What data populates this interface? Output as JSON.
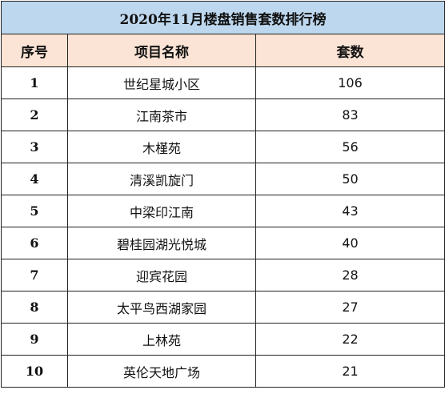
{
  "table": {
    "title": "2020年11月楼盘销售套数排行榜",
    "headers": [
      "序号",
      "项目名称",
      "套数"
    ],
    "rows": [
      {
        "rank": "1",
        "name": "世纪星城小区",
        "units": "106"
      },
      {
        "rank": "2",
        "name": "江南茶市",
        "units": "83"
      },
      {
        "rank": "3",
        "name": "木槿苑",
        "units": "56"
      },
      {
        "rank": "4",
        "name": "清溪凯旋门",
        "units": "50"
      },
      {
        "rank": "5",
        "name": "中梁印江南",
        "units": "43"
      },
      {
        "rank": "6",
        "name": "碧桂园湖光悦城",
        "units": "40"
      },
      {
        "rank": "7",
        "name": "迎宾花园",
        "units": "28"
      },
      {
        "rank": "8",
        "name": "太平鸟西湖家园",
        "units": "27"
      },
      {
        "rank": "9",
        "name": "上林苑",
        "units": "22"
      },
      {
        "rank": "10",
        "name": "英伦天地广场",
        "units": "21"
      }
    ]
  },
  "colors": {
    "title_background": "#bdd7ee",
    "header_background": "#fbe4d5",
    "border": "#222222"
  }
}
